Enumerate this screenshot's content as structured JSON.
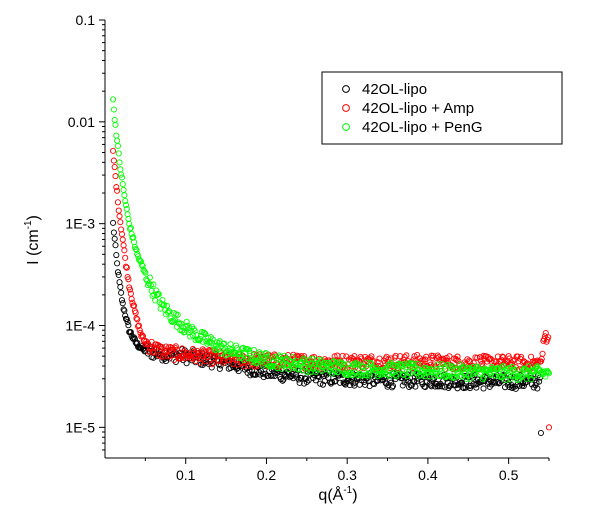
{
  "chart_data": {
    "type": "scatter",
    "xlabel_main": "q(Å",
    "xlabel_sup": "-1",
    "xlabel_end": ")",
    "ylabel_main": "I (cm",
    "ylabel_sup": "-1",
    "ylabel_end": ")",
    "xlim": [
      0.0,
      0.55
    ],
    "ylim": [
      5e-06,
      0.1
    ],
    "yscale": "log",
    "x_ticks": [
      0.1,
      0.2,
      0.3,
      0.4,
      0.5
    ],
    "x_tick_labels": [
      "0.1",
      "0.2",
      "0.3",
      "0.4",
      "0.5"
    ],
    "y_ticks": [
      1e-05,
      0.0001,
      0.001,
      0.01,
      0.1
    ],
    "y_tick_labels": [
      "1E-5",
      "1E-4",
      "1E-3",
      "0.01",
      "0.1"
    ],
    "legend_position": "top-right",
    "series": [
      {
        "name": "42OL-lipo",
        "color": "#000000",
        "x": [
          0.01,
          0.012,
          0.015,
          0.018,
          0.022,
          0.026,
          0.03,
          0.035,
          0.04,
          0.045,
          0.05,
          0.06,
          0.07,
          0.08,
          0.1,
          0.12,
          0.15,
          0.2,
          0.25,
          0.3,
          0.35,
          0.4,
          0.45,
          0.5,
          0.53,
          0.54
        ],
        "y": [
          0.001,
          0.0007,
          0.0004,
          0.00026,
          0.00016,
          0.00012,
          9e-05,
          7.5e-05,
          6.5e-05,
          6e-05,
          5.7e-05,
          5.5e-05,
          5.3e-05,
          5.2e-05,
          5e-05,
          4.7e-05,
          4.3e-05,
          3.5e-05,
          3.1e-05,
          3e-05,
          2.9e-05,
          2.9e-05,
          2.8e-05,
          2.8e-05,
          2.8e-05,
          8.8e-06
        ]
      },
      {
        "name": "42OL-lipo + Amp",
        "color": "#ff0000",
        "x": [
          0.01,
          0.012,
          0.015,
          0.018,
          0.022,
          0.026,
          0.03,
          0.035,
          0.04,
          0.045,
          0.05,
          0.06,
          0.07,
          0.08,
          0.1,
          0.12,
          0.15,
          0.2,
          0.25,
          0.3,
          0.35,
          0.4,
          0.45,
          0.5,
          0.54,
          0.545,
          0.55
        ],
        "y": [
          0.005,
          0.0035,
          0.002,
          0.0012,
          0.0007,
          0.0004,
          0.00025,
          0.00016,
          0.00011,
          8e-05,
          6.8e-05,
          6e-05,
          5.6e-05,
          5.4e-05,
          5.2e-05,
          5e-05,
          4.7e-05,
          4.5e-05,
          4.4e-05,
          4.4e-05,
          4.4e-05,
          4.4e-05,
          4.3e-05,
          4.3e-05,
          4.2e-05,
          8e-05,
          1e-05
        ]
      },
      {
        "name": "42OL-lipo + PenG",
        "color": "#00ff00",
        "x": [
          0.01,
          0.012,
          0.015,
          0.018,
          0.022,
          0.026,
          0.03,
          0.035,
          0.04,
          0.05,
          0.06,
          0.07,
          0.08,
          0.1,
          0.12,
          0.15,
          0.2,
          0.25,
          0.3,
          0.35,
          0.4,
          0.45,
          0.5,
          0.55
        ],
        "y": [
          0.016,
          0.011,
          0.0065,
          0.004,
          0.0024,
          0.0015,
          0.001,
          0.0007,
          0.0005,
          0.00032,
          0.00022,
          0.00016,
          0.00013,
          9.5e-05,
          7.5e-05,
          5.8e-05,
          4.6e-05,
          4.1e-05,
          3.8e-05,
          3.7e-05,
          3.6e-05,
          3.5e-05,
          3.4e-05,
          3.4e-05
        ]
      }
    ]
  }
}
